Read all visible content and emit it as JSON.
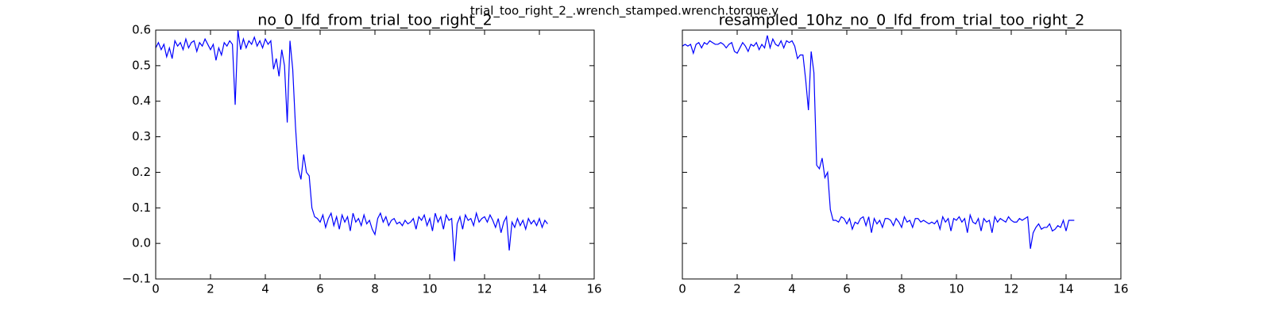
{
  "title": "trial_too_right_2_.wrench_stamped.wrench.torque.y",
  "chart_data": [
    {
      "type": "line",
      "title": "no_0_lfd_from_trial_too_right_2",
      "color": "#0000ff",
      "x": [
        0,
        0.1,
        0.2,
        0.3,
        0.4,
        0.5,
        0.6,
        0.7,
        0.8,
        0.9,
        1,
        1.1,
        1.2,
        1.3,
        1.4,
        1.5,
        1.6,
        1.7,
        1.8,
        1.9,
        2,
        2.1,
        2.2,
        2.3,
        2.4,
        2.5,
        2.6,
        2.7,
        2.8,
        2.9,
        3,
        3.1,
        3.2,
        3.3,
        3.4,
        3.5,
        3.6,
        3.7,
        3.8,
        3.9,
        4,
        4.1,
        4.2,
        4.3,
        4.4,
        4.5,
        4.6,
        4.7,
        4.8,
        4.9,
        5,
        5.1,
        5.2,
        5.3,
        5.4,
        5.5,
        5.6,
        5.7,
        5.8,
        5.9,
        6,
        6.1,
        6.2,
        6.3,
        6.4,
        6.5,
        6.6,
        6.7,
        6.8,
        6.9,
        7,
        7.1,
        7.2,
        7.3,
        7.4,
        7.5,
        7.6,
        7.7,
        7.8,
        7.9,
        8,
        8.1,
        8.2,
        8.3,
        8.4,
        8.5,
        8.6,
        8.7,
        8.8,
        8.9,
        9,
        9.1,
        9.2,
        9.3,
        9.4,
        9.5,
        9.6,
        9.7,
        9.8,
        9.9,
        10,
        10.1,
        10.2,
        10.3,
        10.4,
        10.5,
        10.6,
        10.7,
        10.8,
        10.9,
        11,
        11.1,
        11.2,
        11.3,
        11.4,
        11.5,
        11.6,
        11.7,
        11.8,
        11.9,
        12,
        12.1,
        12.2,
        12.3,
        12.4,
        12.5,
        12.6,
        12.7,
        12.8,
        12.9,
        13,
        13.1,
        13.2,
        13.3,
        13.4,
        13.5,
        13.6,
        13.7,
        13.8,
        13.9,
        14,
        14.1,
        14.2,
        14.3
      ],
      "values": [
        0.55,
        0.565,
        0.545,
        0.56,
        0.525,
        0.55,
        0.52,
        0.57,
        0.555,
        0.565,
        0.545,
        0.575,
        0.55,
        0.565,
        0.57,
        0.54,
        0.565,
        0.555,
        0.575,
        0.56,
        0.545,
        0.56,
        0.515,
        0.55,
        0.53,
        0.565,
        0.555,
        0.57,
        0.56,
        0.39,
        0.6,
        0.545,
        0.575,
        0.55,
        0.57,
        0.56,
        0.58,
        0.555,
        0.57,
        0.55,
        0.575,
        0.56,
        0.57,
        0.49,
        0.52,
        0.47,
        0.545,
        0.5,
        0.34,
        0.57,
        0.49,
        0.33,
        0.21,
        0.18,
        0.25,
        0.2,
        0.19,
        0.1,
        0.075,
        0.07,
        0.06,
        0.08,
        0.045,
        0.07,
        0.085,
        0.05,
        0.075,
        0.04,
        0.08,
        0.06,
        0.075,
        0.035,
        0.085,
        0.06,
        0.07,
        0.05,
        0.08,
        0.055,
        0.065,
        0.04,
        0.025,
        0.07,
        0.085,
        0.06,
        0.075,
        0.05,
        0.065,
        0.07,
        0.055,
        0.06,
        0.05,
        0.065,
        0.055,
        0.06,
        0.07,
        0.04,
        0.075,
        0.065,
        0.08,
        0.05,
        0.07,
        0.035,
        0.085,
        0.06,
        0.075,
        0.04,
        0.08,
        0.065,
        0.07,
        -0.05,
        0.055,
        0.075,
        0.04,
        0.08,
        0.065,
        0.07,
        0.05,
        0.085,
        0.06,
        0.07,
        0.075,
        0.06,
        0.08,
        0.065,
        0.045,
        0.07,
        0.03,
        0.06,
        0.075,
        -0.02,
        0.06,
        0.045,
        0.07,
        0.05,
        0.065,
        0.04,
        0.07,
        0.055,
        0.065,
        0.05,
        0.07,
        0.045,
        0.065,
        0.055
      ],
      "xlim": [
        0,
        16
      ],
      "xticks": [
        0,
        2,
        4,
        6,
        8,
        10,
        12,
        14,
        16
      ],
      "ylim": [
        -0.1,
        0.6
      ],
      "yticks": [
        {
          "value": -0.1,
          "label": "−0.1"
        },
        {
          "value": 0,
          "label": "0.0"
        },
        0.1,
        0.2,
        0.3,
        0.4,
        0.5,
        0.6
      ]
    },
    {
      "type": "line",
      "title": "resampled_10hz_no_0_lfd_from_trial_too_right_2",
      "color": "#0000ff",
      "x": [
        0,
        0.1,
        0.2,
        0.3,
        0.4,
        0.5,
        0.6,
        0.7,
        0.8,
        0.9,
        1,
        1.1,
        1.2,
        1.3,
        1.4,
        1.5,
        1.6,
        1.7,
        1.8,
        1.9,
        2,
        2.1,
        2.2,
        2.3,
        2.4,
        2.5,
        2.6,
        2.7,
        2.8,
        2.9,
        3,
        3.1,
        3.2,
        3.3,
        3.4,
        3.5,
        3.6,
        3.7,
        3.8,
        3.9,
        4,
        4.1,
        4.2,
        4.3,
        4.4,
        4.5,
        4.6,
        4.7,
        4.8,
        4.9,
        5,
        5.1,
        5.2,
        5.3,
        5.4,
        5.5,
        5.6,
        5.7,
        5.8,
        5.9,
        6,
        6.1,
        6.2,
        6.3,
        6.4,
        6.5,
        6.6,
        6.7,
        6.8,
        6.9,
        7,
        7.1,
        7.2,
        7.3,
        7.4,
        7.5,
        7.6,
        7.7,
        7.8,
        7.9,
        8,
        8.1,
        8.2,
        8.3,
        8.4,
        8.5,
        8.6,
        8.7,
        8.8,
        8.9,
        9,
        9.1,
        9.2,
        9.3,
        9.4,
        9.5,
        9.6,
        9.7,
        9.8,
        9.9,
        10,
        10.1,
        10.2,
        10.3,
        10.4,
        10.5,
        10.6,
        10.7,
        10.8,
        10.9,
        11,
        11.1,
        11.2,
        11.3,
        11.4,
        11.5,
        11.6,
        11.7,
        11.8,
        11.9,
        12,
        12.1,
        12.2,
        12.3,
        12.4,
        12.5,
        12.6,
        12.7,
        12.8,
        12.9,
        13,
        13.1,
        13.2,
        13.3,
        13.4,
        13.5,
        13.6,
        13.7,
        13.8,
        13.9,
        14,
        14.1,
        14.2,
        14.3
      ],
      "values": [
        0.555,
        0.56,
        0.555,
        0.56,
        0.535,
        0.56,
        0.565,
        0.55,
        0.565,
        0.56,
        0.57,
        0.565,
        0.56,
        0.56,
        0.565,
        0.56,
        0.55,
        0.56,
        0.565,
        0.54,
        0.535,
        0.55,
        0.565,
        0.555,
        0.54,
        0.56,
        0.555,
        0.565,
        0.545,
        0.56,
        0.55,
        0.585,
        0.55,
        0.575,
        0.56,
        0.555,
        0.57,
        0.55,
        0.57,
        0.565,
        0.57,
        0.555,
        0.52,
        0.53,
        0.53,
        0.46,
        0.375,
        0.54,
        0.48,
        0.22,
        0.21,
        0.24,
        0.185,
        0.2,
        0.095,
        0.065,
        0.065,
        0.06,
        0.075,
        0.07,
        0.055,
        0.07,
        0.04,
        0.06,
        0.055,
        0.07,
        0.075,
        0.05,
        0.075,
        0.03,
        0.07,
        0.055,
        0.065,
        0.045,
        0.07,
        0.07,
        0.065,
        0.05,
        0.07,
        0.06,
        0.045,
        0.075,
        0.06,
        0.065,
        0.045,
        0.07,
        0.07,
        0.06,
        0.065,
        0.06,
        0.055,
        0.06,
        0.055,
        0.065,
        0.04,
        0.075,
        0.06,
        0.07,
        0.035,
        0.07,
        0.065,
        0.075,
        0.06,
        0.07,
        0.03,
        0.08,
        0.06,
        0.055,
        0.07,
        0.035,
        0.07,
        0.06,
        0.065,
        0.03,
        0.075,
        0.06,
        0.07,
        0.065,
        0.06,
        0.075,
        0.065,
        0.06,
        0.06,
        0.07,
        0.065,
        0.07,
        0.075,
        -0.015,
        0.03,
        0.045,
        0.055,
        0.04,
        0.045,
        0.045,
        0.055,
        0.035,
        0.04,
        0.05,
        0.045,
        0.065,
        0.035,
        0.065,
        0.065,
        0.065
      ],
      "xlim": [
        0,
        16
      ],
      "xticks": [
        0,
        2,
        4,
        6,
        8,
        10,
        12,
        14,
        16
      ],
      "ylim": [
        -0.1,
        0.6
      ],
      "yticks": [
        -0.1,
        0,
        0.1,
        0.2,
        0.3,
        0.4,
        0.5,
        0.6
      ],
      "ytick_labels": false
    }
  ]
}
